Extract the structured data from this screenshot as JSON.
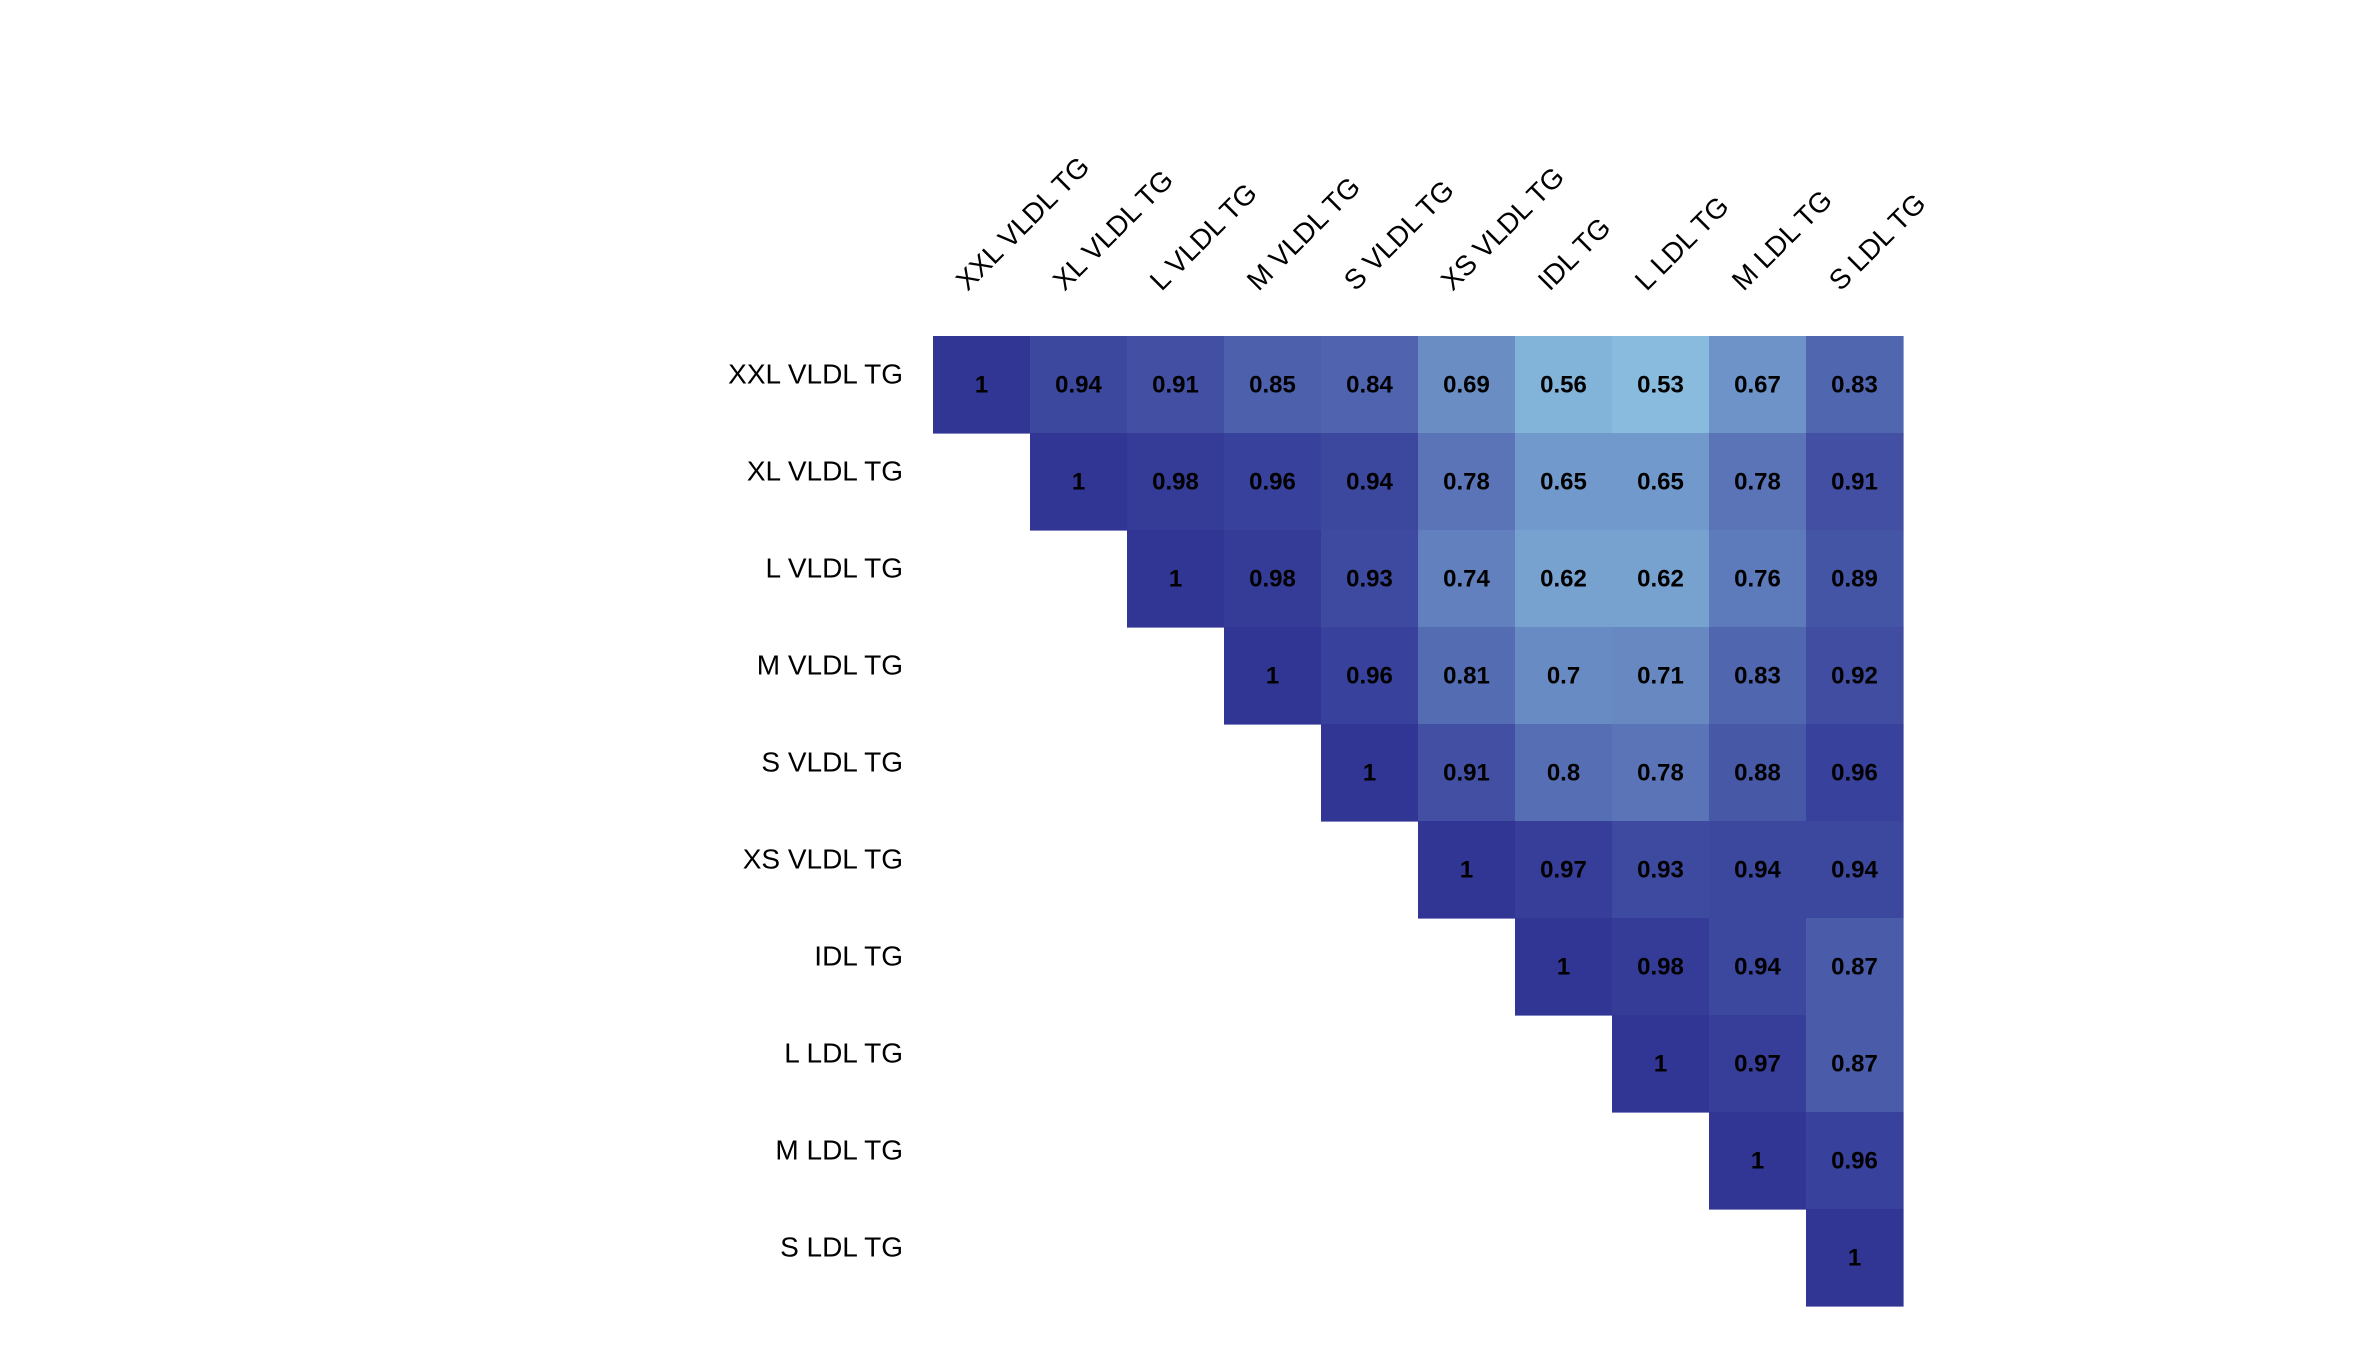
{
  "chart_data": {
    "type": "heatmap",
    "subtype": "correlation-upper-triangle",
    "title": "",
    "variables": [
      "XXL VLDL TG",
      "XL VLDL TG",
      "L VLDL TG",
      "M VLDL TG",
      "S VLDL TG",
      "XS VLDL TG",
      "IDL TG",
      "L LDL TG",
      "M LDL TG",
      "S LDL TG"
    ],
    "matrix": [
      [
        "1",
        "0.94",
        "0.91",
        "0.85",
        "0.84",
        "0.69",
        "0.56",
        "0.53",
        "0.67",
        "0.83"
      ],
      [
        null,
        "1",
        "0.98",
        "0.96",
        "0.94",
        "0.78",
        "0.65",
        "0.65",
        "0.78",
        "0.91"
      ],
      [
        null,
        null,
        "1",
        "0.98",
        "0.93",
        "0.74",
        "0.62",
        "0.62",
        "0.76",
        "0.89"
      ],
      [
        null,
        null,
        null,
        "1",
        "0.96",
        "0.81",
        "0.7",
        "0.71",
        "0.83",
        "0.92"
      ],
      [
        null,
        null,
        null,
        null,
        "1",
        "0.91",
        "0.8",
        "0.78",
        "0.88",
        "0.96"
      ],
      [
        null,
        null,
        null,
        null,
        null,
        "1",
        "0.97",
        "0.93",
        "0.94",
        "0.94"
      ],
      [
        null,
        null,
        null,
        null,
        null,
        null,
        "1",
        "0.98",
        "0.94",
        "0.87"
      ],
      [
        null,
        null,
        null,
        null,
        null,
        null,
        null,
        "1",
        "0.97",
        "0.87"
      ],
      [
        null,
        null,
        null,
        null,
        null,
        null,
        null,
        null,
        "1",
        "0.96"
      ],
      [
        null,
        null,
        null,
        null,
        null,
        null,
        null,
        null,
        null,
        "1"
      ]
    ],
    "color_scale": {
      "low_value": 0.53,
      "high_value": 1,
      "low_color": "#88bbdd",
      "high_color": "#313695"
    },
    "legend": "none"
  }
}
